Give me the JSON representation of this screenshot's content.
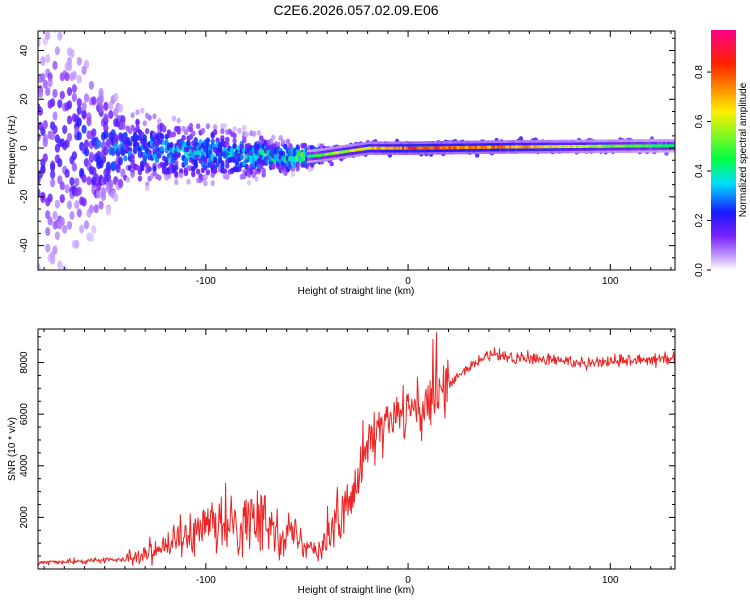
{
  "title": "C2E6.2026.057.02.09.E06",
  "colors": {
    "snr_line": "#ee2222",
    "background": "#ffffff",
    "colormap": [
      "#ffffff",
      "#b27cff",
      "#5500ff",
      "#1a1aff",
      "#00ddff",
      "#00ff44",
      "#ffee00",
      "#ff2200",
      "#ff0088"
    ]
  },
  "chart_data": [
    {
      "type": "heatmap",
      "title": "C2E6.2026.057.02.09.E06",
      "xlabel": "Height of straight line (km)",
      "ylabel": "Frequency (Hz)",
      "xlim": [
        -183,
        132
      ],
      "ylim": [
        -50,
        48
      ],
      "xticks": [
        {
          "value": -100,
          "label": "-100"
        },
        {
          "value": 0,
          "label": "0"
        },
        {
          "value": 100,
          "label": "100"
        }
      ],
      "yticks": [
        {
          "value": -40,
          "label": "-40"
        },
        {
          "value": -20,
          "label": "-20"
        },
        {
          "value": 0,
          "label": "0"
        },
        {
          "value": 20,
          "label": "20"
        },
        {
          "value": 40,
          "label": "40"
        }
      ],
      "colorbar": {
        "label": "Normalized spectral amplitude",
        "range": [
          0,
          0.97
        ],
        "ticks": [
          {
            "value": 0.0,
            "label": "0.0"
          },
          {
            "value": 0.2,
            "label": "0.2"
          },
          {
            "value": 0.4,
            "label": "0.4"
          },
          {
            "value": 0.6,
            "label": "0.6"
          },
          {
            "value": 0.8,
            "label": "0.8"
          }
        ]
      },
      "description_points": [
        {
          "x": -180,
          "center_hz": 0,
          "spread_hz": 48,
          "amplitude": 0.15
        },
        {
          "x": -140,
          "center_hz": 0,
          "spread_hz": 14,
          "amplitude": 0.25
        },
        {
          "x": -100,
          "center_hz": -2,
          "spread_hz": 10,
          "amplitude": 0.3
        },
        {
          "x": -60,
          "center_hz": -4,
          "spread_hz": 6,
          "amplitude": 0.35
        },
        {
          "x": -45,
          "center_hz": -3,
          "spread_hz": 3,
          "amplitude": 0.5
        },
        {
          "x": -20,
          "center_hz": 0,
          "spread_hz": 2,
          "amplitude": 0.7
        },
        {
          "x": 0,
          "center_hz": 0,
          "spread_hz": 2,
          "amplitude": 0.85
        },
        {
          "x": 50,
          "center_hz": 0.5,
          "spread_hz": 2,
          "amplitude": 0.75
        },
        {
          "x": 130,
          "center_hz": 1,
          "spread_hz": 2,
          "amplitude": 0.45
        }
      ]
    },
    {
      "type": "line",
      "xlabel": "Height of straight line (km)",
      "ylabel": "SNR (10 * v/v)",
      "xlim": [
        -183,
        132
      ],
      "ylim": [
        0,
        9300
      ],
      "xticks": [
        {
          "value": -100,
          "label": "-100"
        },
        {
          "value": 0,
          "label": "0"
        },
        {
          "value": 100,
          "label": "100"
        }
      ],
      "yticks": [
        {
          "value": 2000,
          "label": "2000"
        },
        {
          "value": 4000,
          "label": "4000"
        },
        {
          "value": 6000,
          "label": "6000"
        },
        {
          "value": 8000,
          "label": "8000"
        }
      ],
      "series": [
        {
          "name": "SNR",
          "x": [
            -183,
            -160,
            -140,
            -120,
            -100,
            -80,
            -60,
            -45,
            -35,
            -28,
            -20,
            -10,
            0,
            10,
            20,
            30,
            40,
            50,
            70,
            90,
            110,
            132
          ],
          "y": [
            250,
            300,
            400,
            900,
            1500,
            1900,
            1500,
            700,
            1500,
            3000,
            5000,
            5600,
            6100,
            6300,
            7100,
            7800,
            8300,
            8200,
            8100,
            8000,
            8100,
            8200
          ]
        }
      ]
    }
  ]
}
